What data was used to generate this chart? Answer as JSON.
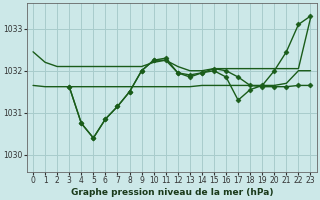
{
  "title": "Graphe pression niveau de la mer (hPa)",
  "background_color": "#cce8e8",
  "grid_color": "#a8cccc",
  "line_color": "#1a5c1a",
  "xlim": [
    -0.5,
    23.5
  ],
  "ylim": [
    1029.6,
    1033.6
  ],
  "yticks": [
    1030,
    1031,
    1032,
    1033
  ],
  "xticks": [
    0,
    1,
    2,
    3,
    4,
    5,
    6,
    7,
    8,
    9,
    10,
    11,
    12,
    13,
    14,
    15,
    16,
    17,
    18,
    19,
    20,
    21,
    22,
    23
  ],
  "series": [
    {
      "x": [
        0,
        1,
        2,
        3,
        4,
        5,
        6,
        7,
        8,
        9,
        10,
        11,
        12,
        13,
        14,
        15,
        16,
        17,
        18,
        19,
        20,
        21,
        22,
        23
      ],
      "y": [
        1032.45,
        1032.2,
        1032.1,
        1032.1,
        1032.1,
        1032.1,
        1032.1,
        1032.1,
        1032.1,
        1032.1,
        1032.2,
        1032.25,
        1032.1,
        1032.0,
        1032.0,
        1032.05,
        1032.05,
        1032.05,
        1032.05,
        1032.05,
        1032.05,
        1032.05,
        1032.05,
        1033.25
      ],
      "marker": null,
      "linestyle": "-",
      "linewidth": 1.0
    },
    {
      "x": [
        0,
        1,
        2,
        3,
        4,
        5,
        6,
        7,
        8,
        9,
        10,
        11,
        12,
        13,
        14,
        15,
        16,
        17,
        18,
        19,
        20,
        21,
        22,
        23
      ],
      "y": [
        1031.65,
        1031.62,
        1031.62,
        1031.62,
        1031.62,
        1031.62,
        1031.62,
        1031.62,
        1031.62,
        1031.62,
        1031.62,
        1031.62,
        1031.62,
        1031.62,
        1031.65,
        1031.65,
        1031.65,
        1031.65,
        1031.65,
        1031.65,
        1031.65,
        1031.7,
        1032.0,
        1032.0
      ],
      "marker": null,
      "linestyle": "-",
      "linewidth": 1.0
    },
    {
      "x": [
        3,
        4,
        5,
        6,
        7,
        8,
        9,
        10,
        11,
        12,
        13,
        14,
        15,
        16,
        17,
        18,
        19,
        20,
        21,
        22,
        23
      ],
      "y": [
        1031.62,
        1030.75,
        1030.4,
        1030.85,
        1031.15,
        1031.5,
        1032.0,
        1032.25,
        1032.25,
        1031.95,
        1031.85,
        1031.95,
        1032.0,
        1031.85,
        1031.3,
        1031.55,
        1031.65,
        1032.0,
        1032.45,
        1033.1,
        1033.3
      ],
      "marker": "D",
      "markersize": 2.5,
      "linestyle": "-",
      "linewidth": 1.0
    },
    {
      "x": [
        3,
        4,
        5,
        6,
        7,
        8,
        9,
        10,
        11,
        12,
        13,
        14,
        15,
        16,
        17,
        18,
        19,
        20,
        21,
        22,
        23
      ],
      "y": [
        1031.62,
        1030.75,
        1030.4,
        1030.85,
        1031.15,
        1031.5,
        1032.0,
        1032.25,
        1032.3,
        1031.95,
        1031.9,
        1031.95,
        1032.05,
        1032.0,
        1031.85,
        1031.65,
        1031.62,
        1031.62,
        1031.62,
        1031.65,
        1031.65
      ],
      "marker": "D",
      "markersize": 2.5,
      "linestyle": "-",
      "linewidth": 1.0
    }
  ],
  "tick_fontsize": 5.5,
  "title_fontsize": 6.5
}
